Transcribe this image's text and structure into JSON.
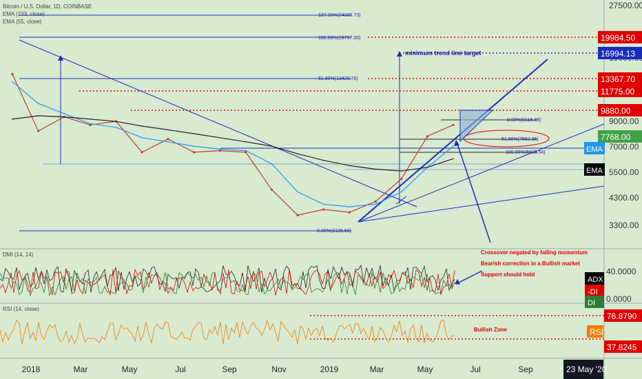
{
  "header": {
    "symbol": "Bitcoin / U.S. Dollar, 1D, COINBASE",
    "ema1": "EMA (233, close)",
    "ema2": "EMA (55, close)",
    "dmi": "DMI (14, 14)",
    "rsi": "RSI (14, close)"
  },
  "price_axis": {
    "ticks": [
      "27500.00",
      "19000.00",
      "13000.00",
      "9000.00",
      "7000.00",
      "5500.00",
      "4300.00",
      "3300.00"
    ],
    "badges": [
      {
        "label": "19984.50",
        "color": "#e00000"
      },
      {
        "label": "16994.13",
        "color": "#1a2db8"
      },
      {
        "label": "13367.70",
        "color": "#e00000"
      },
      {
        "label": "11775.00",
        "color": "#e00000"
      },
      {
        "label": "9880.00",
        "color": "#e00000"
      },
      {
        "label": "7768.00",
        "color": "#43a047"
      }
    ],
    "ema_labels": [
      {
        "label": "EMA",
        "color": "#2196f3"
      },
      {
        "label": "EMA",
        "color": "#000000"
      }
    ]
  },
  "dmi_axis": {
    "ticks": [
      "40.0000",
      "0.0000"
    ],
    "badges": [
      {
        "label": "ADX",
        "color": "#000000"
      },
      {
        "label": "-DI",
        "color": "#e00000"
      },
      {
        "label": "DI",
        "color": "#2e7d32"
      }
    ]
  },
  "rsi_axis": {
    "badges": [
      {
        "label": "76.8790",
        "color": "#e00000"
      },
      {
        "label": "RSI",
        "color": "#f57c00"
      },
      {
        "label": "37.8245",
        "color": "#e00000"
      }
    ]
  },
  "date_axis": {
    "ticks": [
      "2018",
      "Mar",
      "May",
      "Jul",
      "Sep",
      "Nov",
      "2019",
      "Mar",
      "May",
      "Jul",
      "Sep"
    ],
    "current": "23 May '20"
  },
  "fib_upper": [
    "127.20%(24330.73)",
    "100.00%(19797.00)",
    "61.80%(13429.78)"
  ],
  "fib_lower": [
    "0.00%(3128.89)"
  ],
  "fib_recent": [
    "0.00%(9118.38)",
    "61.80%(7562.36)",
    "100.00%(6600.54)"
  ],
  "annotations": {
    "trend_target": "minimum trend line target",
    "dmi_notes": [
      "Crossover negated by falling momentum",
      "Bearish correction in a Bullish market",
      "Support should hold"
    ],
    "rsi_zone": "Bullish Zone"
  },
  "chart_data": {
    "type": "line",
    "title": "Bitcoin / U.S. Dollar, 1D, COINBASE",
    "y_scale": "log",
    "x": [
      "2018-01",
      "2018-02",
      "2018-03",
      "2018-04",
      "2018-05",
      "2018-06",
      "2018-07",
      "2018-08",
      "2018-09",
      "2018-10",
      "2018-11",
      "2018-12",
      "2019-01",
      "2019-02",
      "2019-03",
      "2019-04",
      "2019-05",
      "2019-06"
    ],
    "series": [
      {
        "name": "BTCUSD",
        "values": [
          14000,
          8000,
          9200,
          8500,
          8800,
          6500,
          7400,
          6500,
          6600,
          6500,
          4500,
          3500,
          3700,
          3600,
          4000,
          5000,
          7600,
          8500
        ]
      },
      {
        "name": "EMA (55, close)",
        "values": [
          13000,
          10500,
          9500,
          8600,
          8300,
          7500,
          7200,
          6900,
          6700,
          6600,
          5800,
          4400,
          3900,
          3800,
          3900,
          4400,
          5600,
          6900
        ]
      },
      {
        "name": "EMA (233, close)",
        "values": [
          9000,
          9300,
          9200,
          9000,
          8800,
          8400,
          8100,
          7800,
          7500,
          7200,
          6900,
          6400,
          6000,
          5700,
          5500,
          5400,
          5600,
          6100
        ]
      }
    ],
    "price_levels": [
      24330.73,
      19797.0,
      19984.5,
      16994.13,
      13429.78,
      13367.7,
      11775.0,
      9880.0,
      9118.38,
      7768.0,
      7562.36,
      6600.54,
      3128.89
    ],
    "rsi_levels": [
      76.879,
      37.8245
    ],
    "dmi_ylim": [
      0,
      40
    ]
  }
}
